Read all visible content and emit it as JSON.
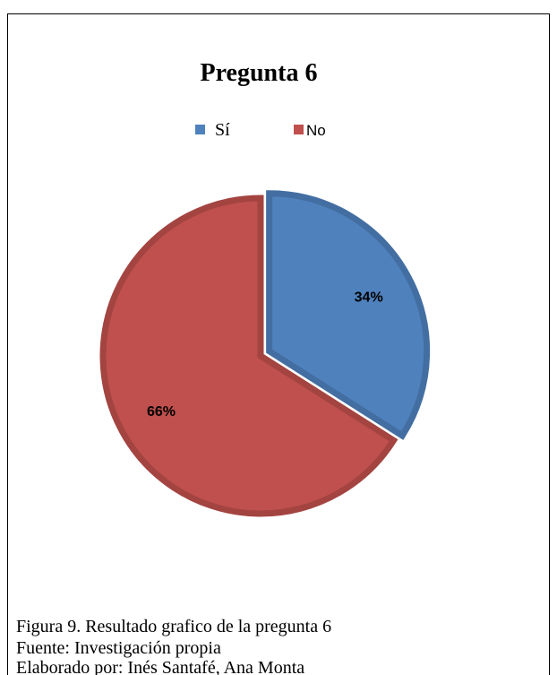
{
  "chart_data": {
    "type": "pie",
    "title": "Pregunta 6",
    "categories": [
      "Sí",
      "No"
    ],
    "values": [
      34,
      66
    ],
    "value_labels": [
      "34%",
      "66%"
    ],
    "colors": [
      "#4f81bd",
      "#c0504d"
    ],
    "explode": [
      true,
      false
    ],
    "legend": "top",
    "caption": [
      "Figura 9. Resultado grafico de la pregunta 6",
      "Fuente: Investigación propia",
      "Elaborado por: Inés Santafé, Ana Monta"
    ]
  }
}
